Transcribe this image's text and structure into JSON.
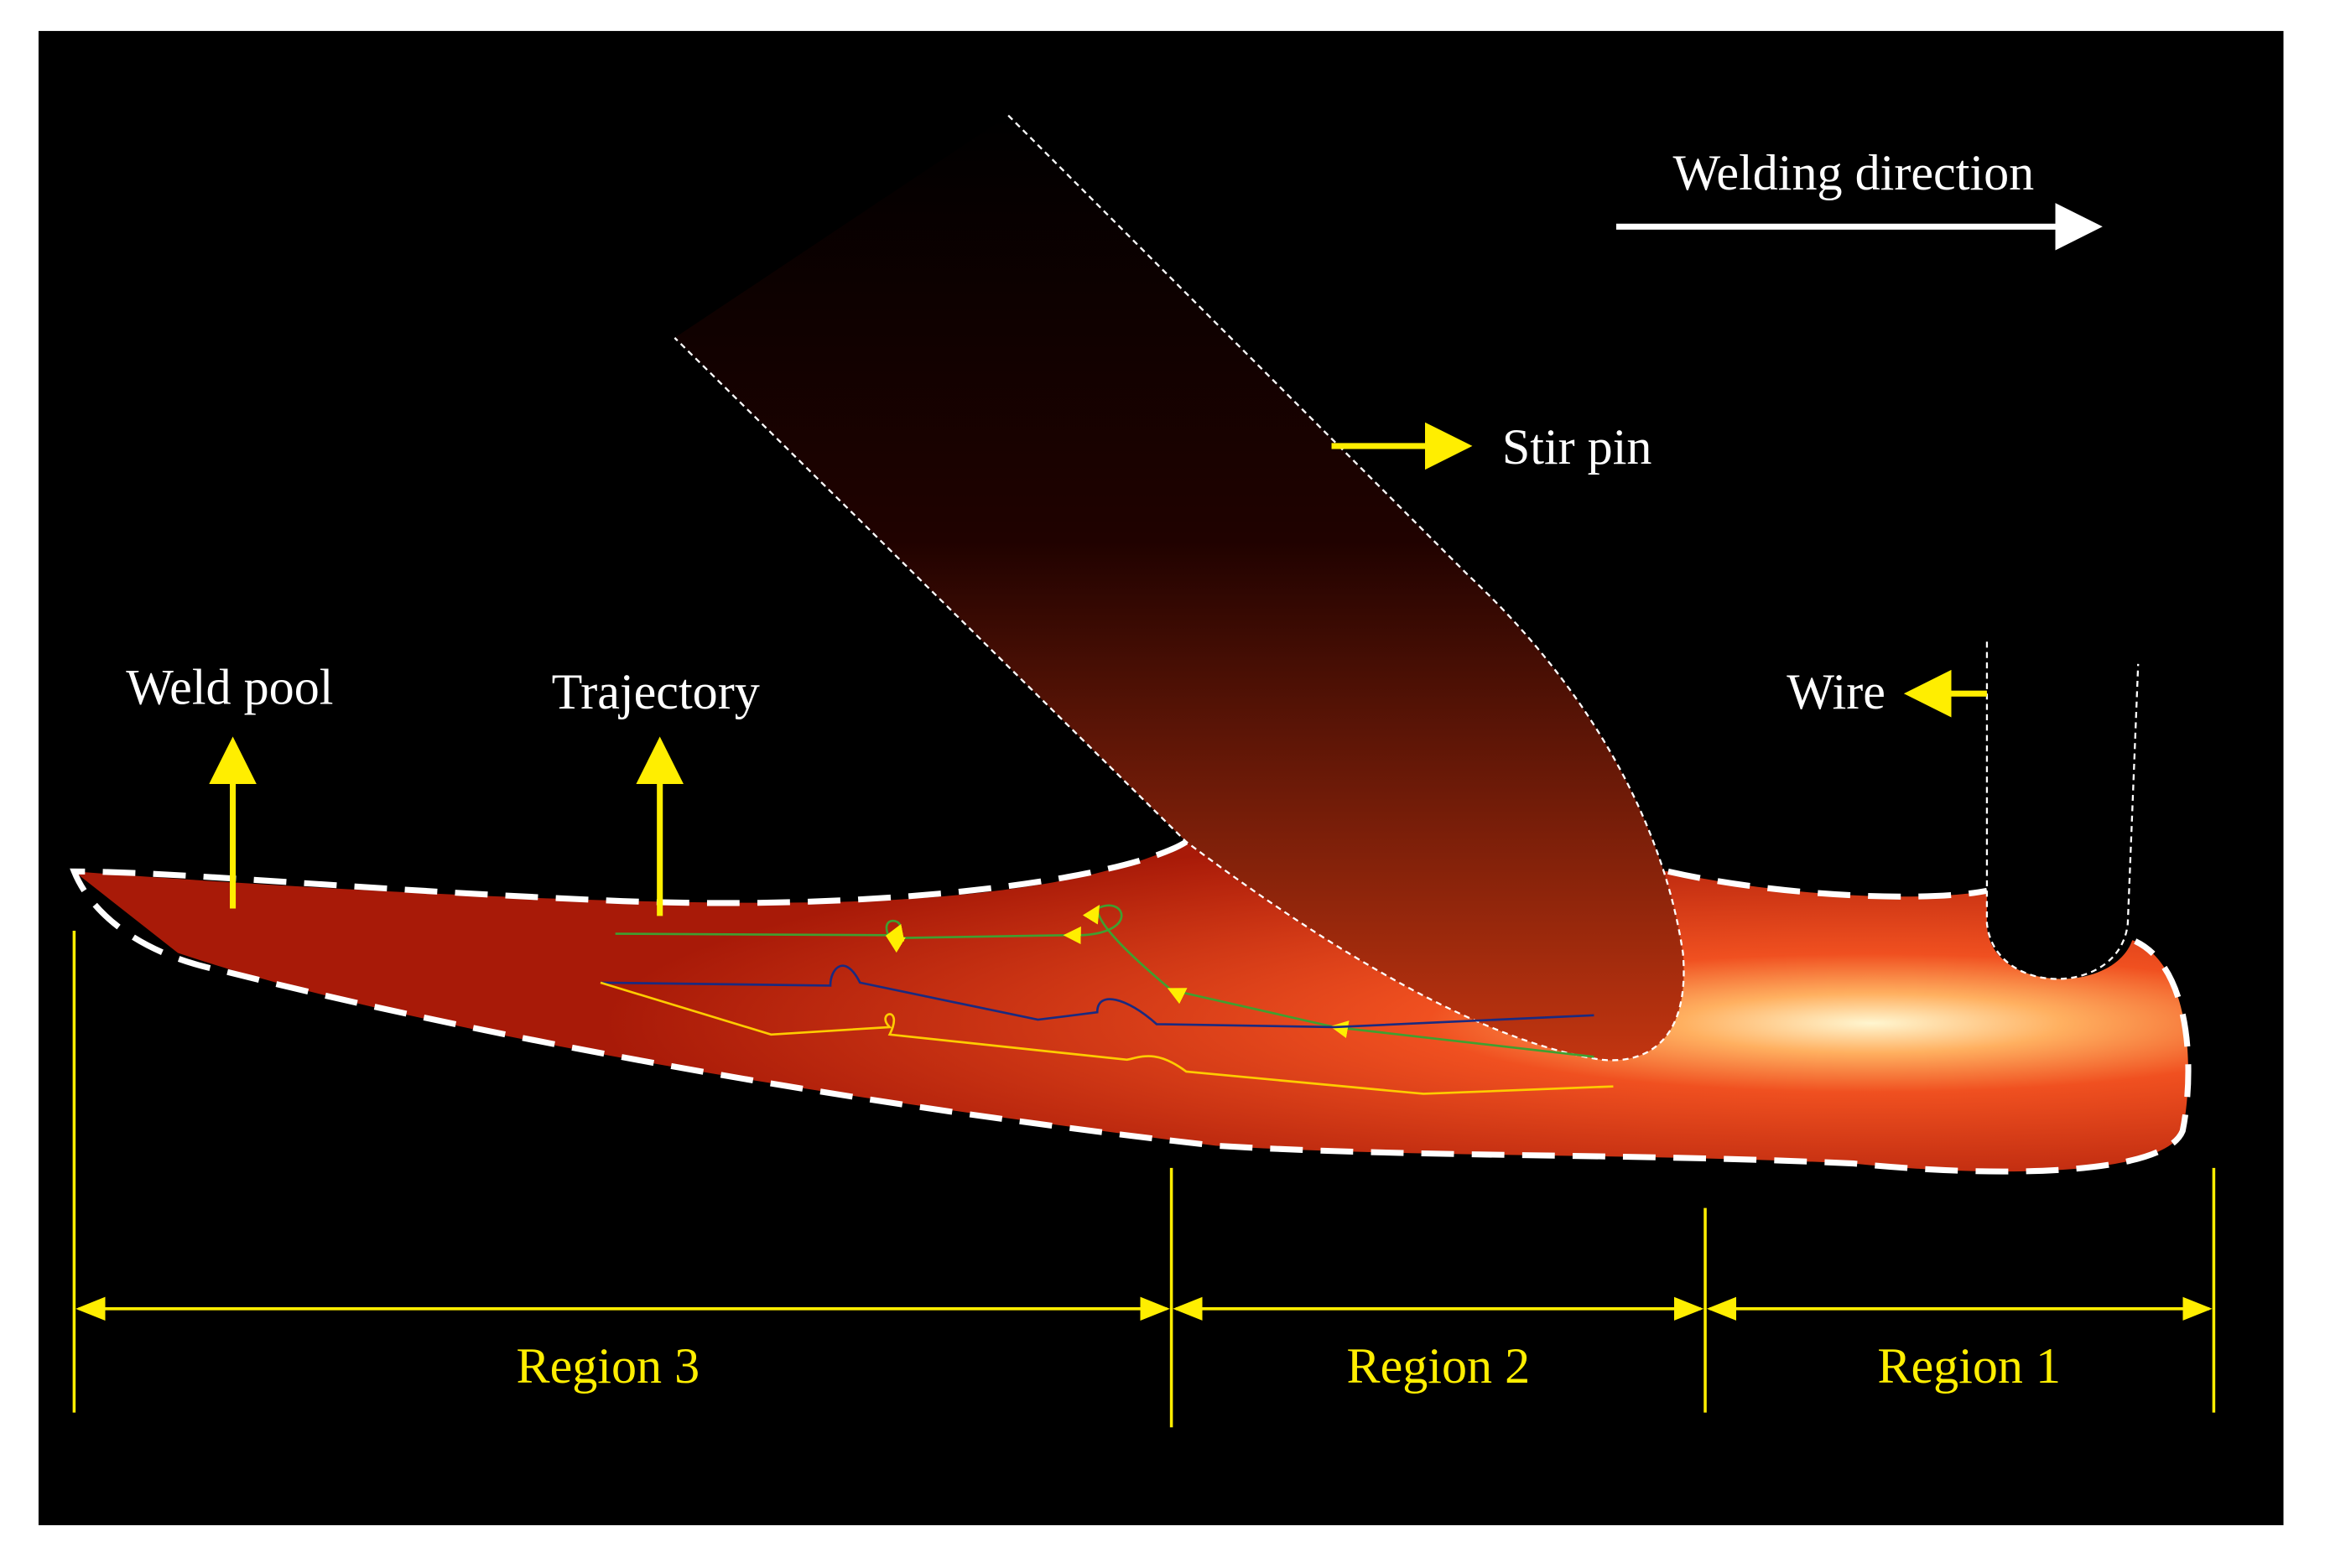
{
  "labels": {
    "welding_direction": "Welding direction",
    "stir_pin": "Stir pin",
    "weld_pool": "Weld pool",
    "trajectory": "Trajectory",
    "wire": "Wire"
  },
  "regions": [
    "Region 3",
    "Region 2",
    "Region 1"
  ]
}
